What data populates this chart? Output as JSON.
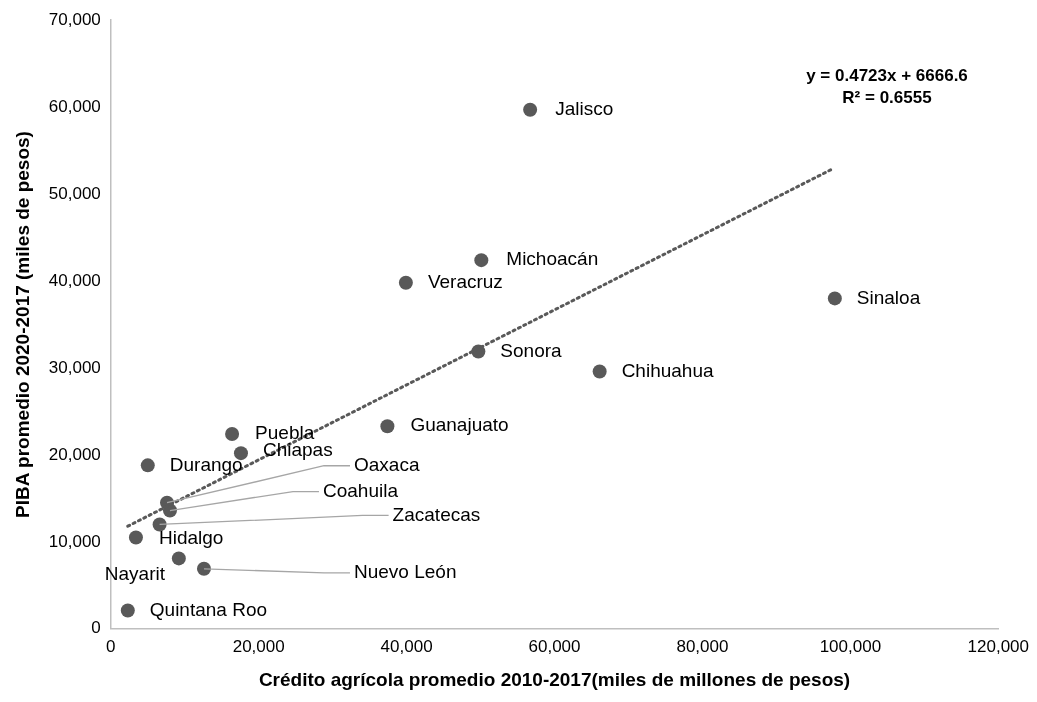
{
  "chart_data": {
    "type": "scatter",
    "xlabel": "Crédito agrícola promedio 2010-2017(miles de millones de pesos)",
    "ylabel": "PIBA promedio 2020-2017 (miles de pesos)",
    "x": [
      56700,
      50100,
      39900,
      97900,
      49700,
      66100,
      37400,
      16400,
      17600,
      5000,
      7600,
      8000,
      6600,
      3400,
      9200,
      12600,
      2300
    ],
    "series": [
      {
        "color": "#595959",
        "marker": "circle",
        "values": [
          59700,
          42400,
          39800,
          38000,
          31900,
          29600,
          23300,
          22400,
          20200,
          18800,
          14500,
          13600,
          12000,
          10500,
          8100,
          6900,
          2100
        ]
      },
      {
        "type": "line",
        "color": "#595959",
        "marker": "none",
        "line_style": "dotted",
        "x": [
          2300,
          97600
        ],
        "values": [
          11800,
          52900
        ]
      }
    ],
    "xlim": [
      0,
      120000
    ],
    "xticks": [
      0,
      {
        "value": 20000,
        "label": "20,000"
      },
      {
        "value": 40000,
        "label": "40,000"
      },
      {
        "value": 60000,
        "label": "60,000"
      },
      {
        "value": 80000,
        "label": "80,000"
      },
      {
        "value": 100000,
        "label": "100,000"
      },
      {
        "value": 120000,
        "label": "120,000"
      }
    ],
    "ylim": [
      0,
      70000
    ],
    "yticks": [
      0,
      {
        "value": 10000,
        "label": "10,000"
      },
      {
        "value": 20000,
        "label": "20,000"
      },
      {
        "value": 30000,
        "label": "30,000"
      },
      {
        "value": 40000,
        "label": "40,000"
      },
      {
        "value": 50000,
        "label": "50,000"
      },
      {
        "value": 60000,
        "label": "60,000"
      },
      {
        "value": 70000,
        "label": "70,000"
      }
    ],
    "grid": false,
    "legend": false,
    "annotations": [
      "y = 0.4723x + 6666.6\nR² = 0.6555",
      {
        "text": "Jalisco",
        "x": 56700,
        "y": 59700
      },
      {
        "text": "Michoacán",
        "x": 50100,
        "y": 42400
      },
      {
        "text": "Veracruz",
        "x": 39900,
        "y": 39800
      },
      {
        "text": "Sinaloa",
        "x": 97900,
        "y": 38000
      },
      {
        "text": "Sonora",
        "x": 49700,
        "y": 31900
      },
      {
        "text": "Chihuahua",
        "x": 66100,
        "y": 29600
      },
      {
        "text": "Guanajuato",
        "x": 37400,
        "y": 23300
      },
      {
        "text": "Puebla",
        "x": 16400,
        "y": 22400
      },
      {
        "text": "Chiapas",
        "x": 17600,
        "y": 20200
      },
      {
        "text": "Durango",
        "x": 5000,
        "y": 18800
      },
      {
        "text": "Oaxaca",
        "x": 7600,
        "y": 14500
      },
      {
        "text": "Coahuila",
        "x": 8000,
        "y": 13600
      },
      {
        "text": "Zacatecas",
        "x": 6600,
        "y": 12000
      },
      {
        "text": "Hidalgo",
        "x": 3400,
        "y": 10500
      },
      {
        "text": "Nayarit",
        "x": 9200,
        "y": 8100
      },
      {
        "text": "Nuevo León",
        "x": 12600,
        "y": 6900
      },
      {
        "text": "Quintana Roo",
        "x": 2300,
        "y": 2100
      }
    ]
  }
}
